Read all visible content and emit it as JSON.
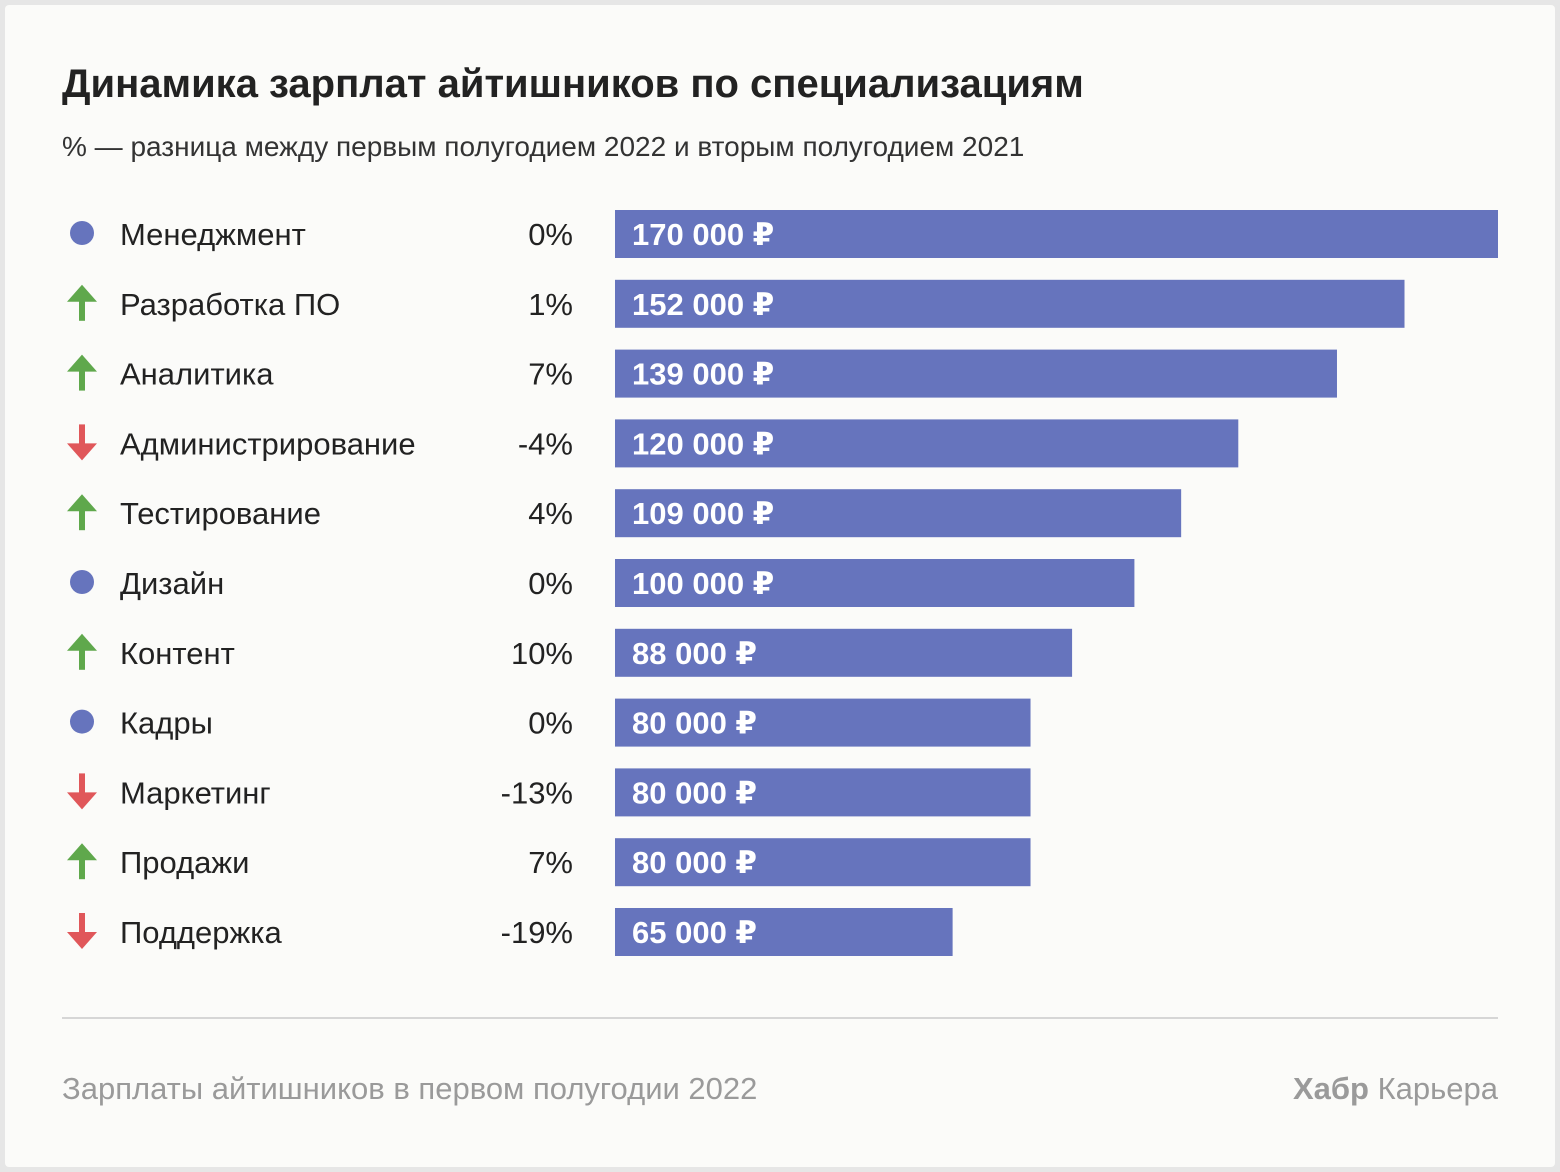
{
  "chart_data": {
    "type": "bar",
    "orientation": "horizontal",
    "title": "Динамика зарплат айтишников по специализациям",
    "subtitle": "% — разница между первым полугодием 2022 и вторым полугодием 2021",
    "categories": [
      "Менеджмент",
      "Разработка ПО",
      "Аналитика",
      "Администрирование",
      "Тестирование",
      "Дизайн",
      "Контент",
      "Кадры",
      "Маркетинг",
      "Продажи",
      "Поддержка"
    ],
    "values": [
      170000,
      152000,
      139000,
      120000,
      109000,
      100000,
      88000,
      80000,
      80000,
      80000,
      65000
    ],
    "value_labels": [
      "170 000 ₽",
      "152 000 ₽",
      "139 000 ₽",
      "120 000 ₽",
      "109 000 ₽",
      "100 000 ₽",
      "88 000 ₽",
      "80 000 ₽",
      "80 000 ₽",
      "80 000 ₽",
      "65 000 ₽"
    ],
    "change_pct": [
      0,
      1,
      7,
      -4,
      4,
      0,
      10,
      0,
      -13,
      7,
      -19
    ],
    "change_labels": [
      "0%",
      "1%",
      "7%",
      "-4%",
      "4%",
      "0%",
      "10%",
      "0%",
      "-13%",
      "7%",
      "-19%"
    ],
    "trend_icons": [
      "dot",
      "up",
      "up",
      "down",
      "up",
      "dot",
      "up",
      "dot",
      "down",
      "up",
      "down"
    ],
    "xlim": [
      0,
      170000
    ],
    "grid": false,
    "colors": {
      "bar": "#6674bd",
      "dot": "#6674bd",
      "up": "#5fa84c",
      "down": "#e0575a",
      "bar_text": "#ffffff"
    }
  },
  "footer": {
    "source": "Зарплаты айтишников в первом полугодии 2022",
    "brand_bold": "Хабр",
    "brand_rest": " Карьера"
  }
}
